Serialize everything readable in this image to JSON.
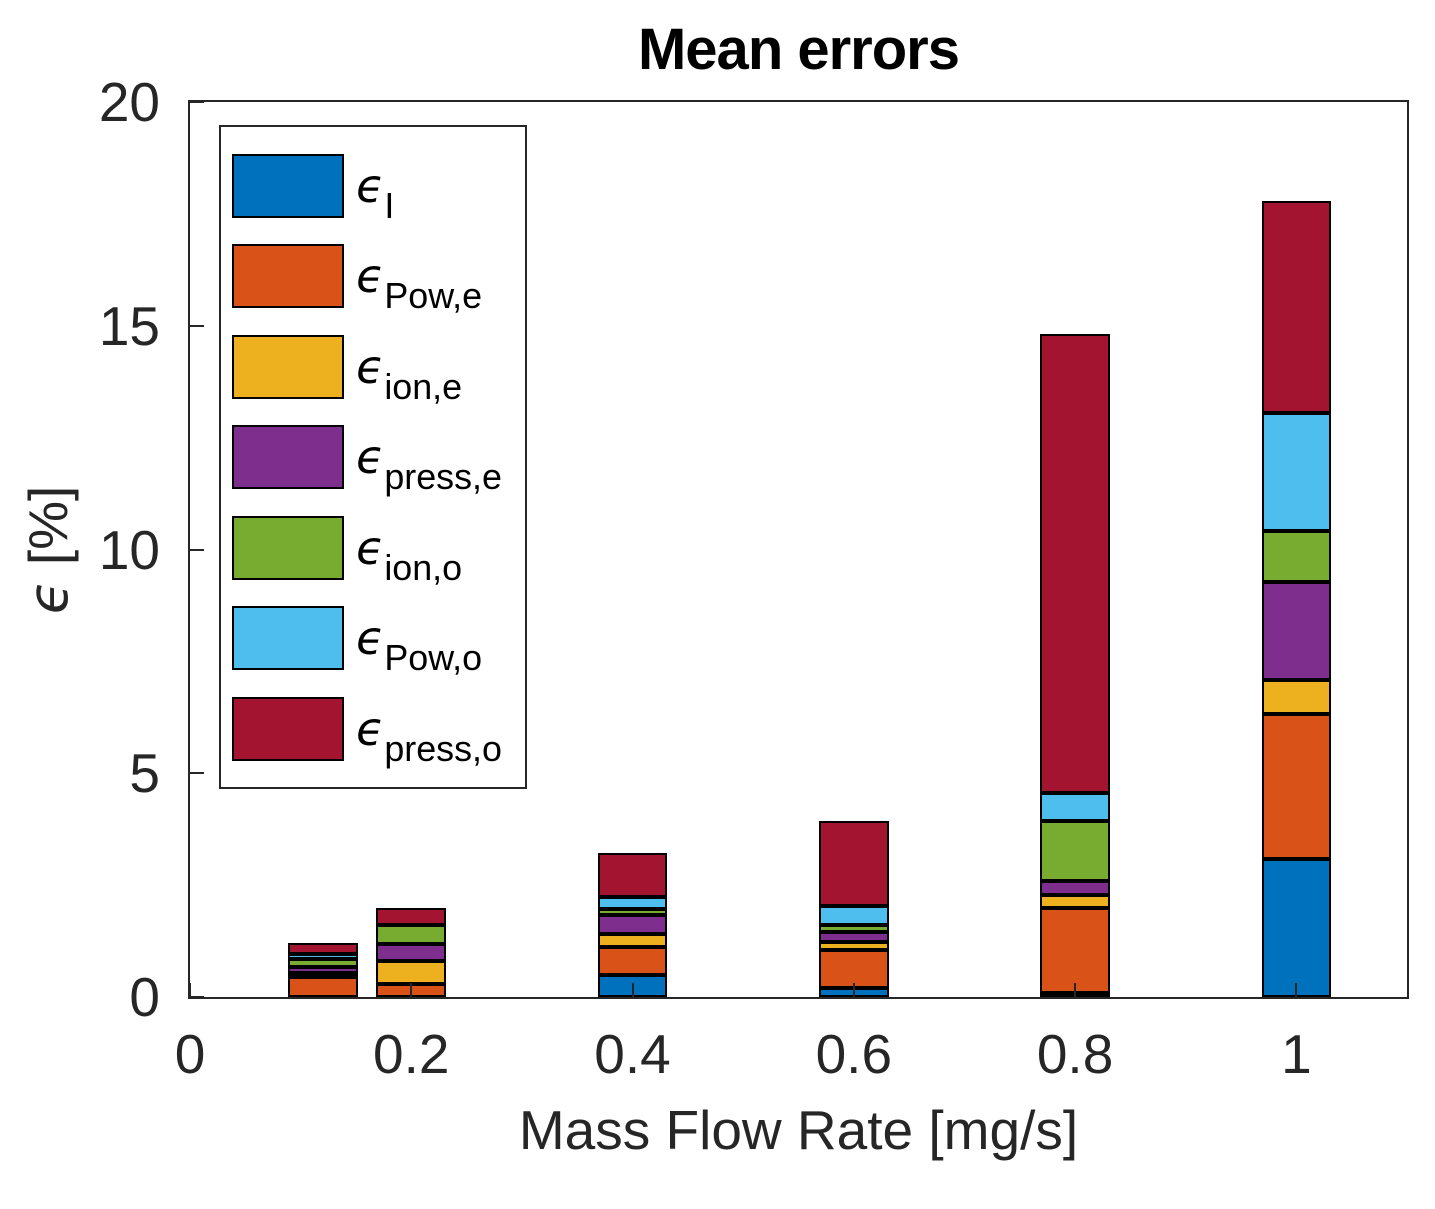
{
  "chart_data": {
    "type": "bar",
    "stacked": true,
    "title": "Mean errors",
    "xlabel": "Mass Flow Rate [mg/s]",
    "ylabel": "ϵ [%]",
    "ylabel_symbol": "ϵ",
    "ylabel_unit": "[%]",
    "xlim": [
      0,
      1.1
    ],
    "ylim": [
      0,
      20
    ],
    "xticks": [
      0,
      0.2,
      0.4,
      0.6,
      0.8,
      1
    ],
    "xtick_labels": [
      "0",
      "0.2",
      "0.4",
      "0.6",
      "0.8",
      "1"
    ],
    "yticks": [
      0,
      5,
      10,
      15,
      20
    ],
    "ytick_labels": [
      "0",
      "5",
      "10",
      "15",
      "20"
    ],
    "categories": [
      0.12,
      0.2,
      0.4,
      0.6,
      0.8,
      1.0
    ],
    "bar_width": 0.063,
    "grid": false,
    "legend_position": "upper-left-inside",
    "axis_color": "#262626",
    "bar_edge_color": "#000000",
    "legend_border_color": "#262626",
    "series": [
      {
        "id": "i",
        "legend_base": "ϵ",
        "legend_sub": "I",
        "color": "#0072BD",
        "values": [
          0,
          0,
          0.5,
          0.19,
          0.1,
          3.09
        ]
      },
      {
        "id": "pow-e",
        "legend_base": "ϵ",
        "legend_sub": "Pow,e",
        "color": "#D95319",
        "values": [
          0.45,
          0.29,
          0.62,
          0.85,
          1.89,
          3.23
        ]
      },
      {
        "id": "ion-e",
        "legend_base": "ϵ",
        "legend_sub": "ion,e",
        "color": "#EDB120",
        "values": [
          0.08,
          0.51,
          0.28,
          0.18,
          0.3,
          0.77
        ]
      },
      {
        "id": "press-e",
        "legend_base": "ϵ",
        "legend_sub": "press,e",
        "color": "#7E2F8E",
        "values": [
          0.14,
          0.38,
          0.43,
          0.24,
          0.3,
          2.18
        ]
      },
      {
        "id": "ion-o",
        "legend_base": "ϵ",
        "legend_sub": "ion,o",
        "color": "#77AC30",
        "values": [
          0.17,
          0.44,
          0.13,
          0.16,
          1.35,
          1.14
        ]
      },
      {
        "id": "pow-o",
        "legend_base": "ϵ",
        "legend_sub": "Pow,o",
        "color": "#4DBEEE",
        "values": [
          0.13,
          0,
          0.27,
          0.41,
          0.62,
          2.64
        ]
      },
      {
        "id": "press-o",
        "legend_base": "ϵ",
        "legend_sub": "press,o",
        "color": "#A2142F",
        "values": [
          0.23,
          0.36,
          0.99,
          1.9,
          10.26,
          4.73
        ]
      }
    ],
    "bar_totals": [
      1.2,
      1.98,
      3.22,
      3.93,
      14.82,
      17.78
    ]
  }
}
